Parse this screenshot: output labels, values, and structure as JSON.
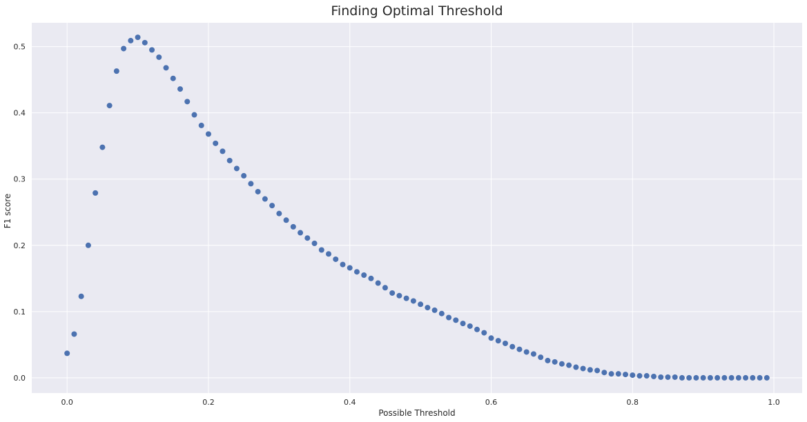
{
  "chart_data": {
    "type": "scatter",
    "title": "Finding Optimal Threshold",
    "xlabel": "Possible Threshold",
    "ylabel": "F1 score",
    "xlim": [
      -0.05,
      1.04
    ],
    "ylim": [
      -0.023,
      0.536
    ],
    "x_ticks": [
      0.0,
      0.2,
      0.4,
      0.6,
      0.8,
      1.0
    ],
    "y_ticks": [
      0.0,
      0.1,
      0.2,
      0.3,
      0.4,
      0.5
    ],
    "grid": true,
    "background": "#EAEAF2",
    "grid_color": "#FFFFFF",
    "marker_color": "#4C72B0",
    "x": [
      0.0,
      0.01,
      0.02,
      0.03,
      0.04,
      0.05,
      0.06,
      0.07,
      0.08,
      0.09,
      0.1,
      0.11,
      0.12,
      0.13,
      0.14,
      0.15,
      0.16,
      0.17,
      0.18,
      0.19,
      0.2,
      0.21,
      0.22,
      0.23,
      0.24,
      0.25,
      0.26,
      0.27,
      0.28,
      0.29,
      0.3,
      0.31,
      0.32,
      0.33,
      0.34,
      0.35,
      0.36,
      0.37,
      0.38,
      0.39,
      0.4,
      0.41,
      0.42,
      0.43,
      0.44,
      0.45,
      0.46,
      0.47,
      0.48,
      0.49,
      0.5,
      0.51,
      0.52,
      0.53,
      0.54,
      0.55,
      0.56,
      0.57,
      0.58,
      0.59,
      0.6,
      0.61,
      0.62,
      0.63,
      0.64,
      0.65,
      0.66,
      0.67,
      0.68,
      0.69,
      0.7,
      0.71,
      0.72,
      0.73,
      0.74,
      0.75,
      0.76,
      0.77,
      0.78,
      0.79,
      0.8,
      0.81,
      0.82,
      0.83,
      0.84,
      0.85,
      0.86,
      0.87,
      0.88,
      0.89,
      0.9,
      0.91,
      0.92,
      0.93,
      0.94,
      0.95,
      0.96,
      0.97,
      0.98,
      0.99
    ],
    "y": [
      0.037,
      0.066,
      0.123,
      0.2,
      0.279,
      0.348,
      0.411,
      0.463,
      0.497,
      0.509,
      0.514,
      0.506,
      0.495,
      0.484,
      0.468,
      0.452,
      0.436,
      0.417,
      0.397,
      0.381,
      0.368,
      0.354,
      0.342,
      0.328,
      0.316,
      0.305,
      0.293,
      0.281,
      0.27,
      0.26,
      0.248,
      0.238,
      0.228,
      0.219,
      0.211,
      0.203,
      0.193,
      0.187,
      0.179,
      0.171,
      0.166,
      0.16,
      0.155,
      0.15,
      0.143,
      0.136,
      0.128,
      0.124,
      0.12,
      0.116,
      0.111,
      0.106,
      0.102,
      0.097,
      0.091,
      0.087,
      0.082,
      0.078,
      0.073,
      0.068,
      0.06,
      0.056,
      0.052,
      0.047,
      0.043,
      0.039,
      0.036,
      0.031,
      0.026,
      0.024,
      0.021,
      0.019,
      0.016,
      0.014,
      0.012,
      0.011,
      0.008,
      0.006,
      0.006,
      0.005,
      0.004,
      0.003,
      0.003,
      0.002,
      0.001,
      0.001,
      0.001,
      0.0,
      0.0,
      0.0,
      0.0,
      0.0,
      0.0,
      0.0,
      0.0,
      0.0,
      0.0,
      0.0,
      0.0,
      0.0
    ]
  }
}
